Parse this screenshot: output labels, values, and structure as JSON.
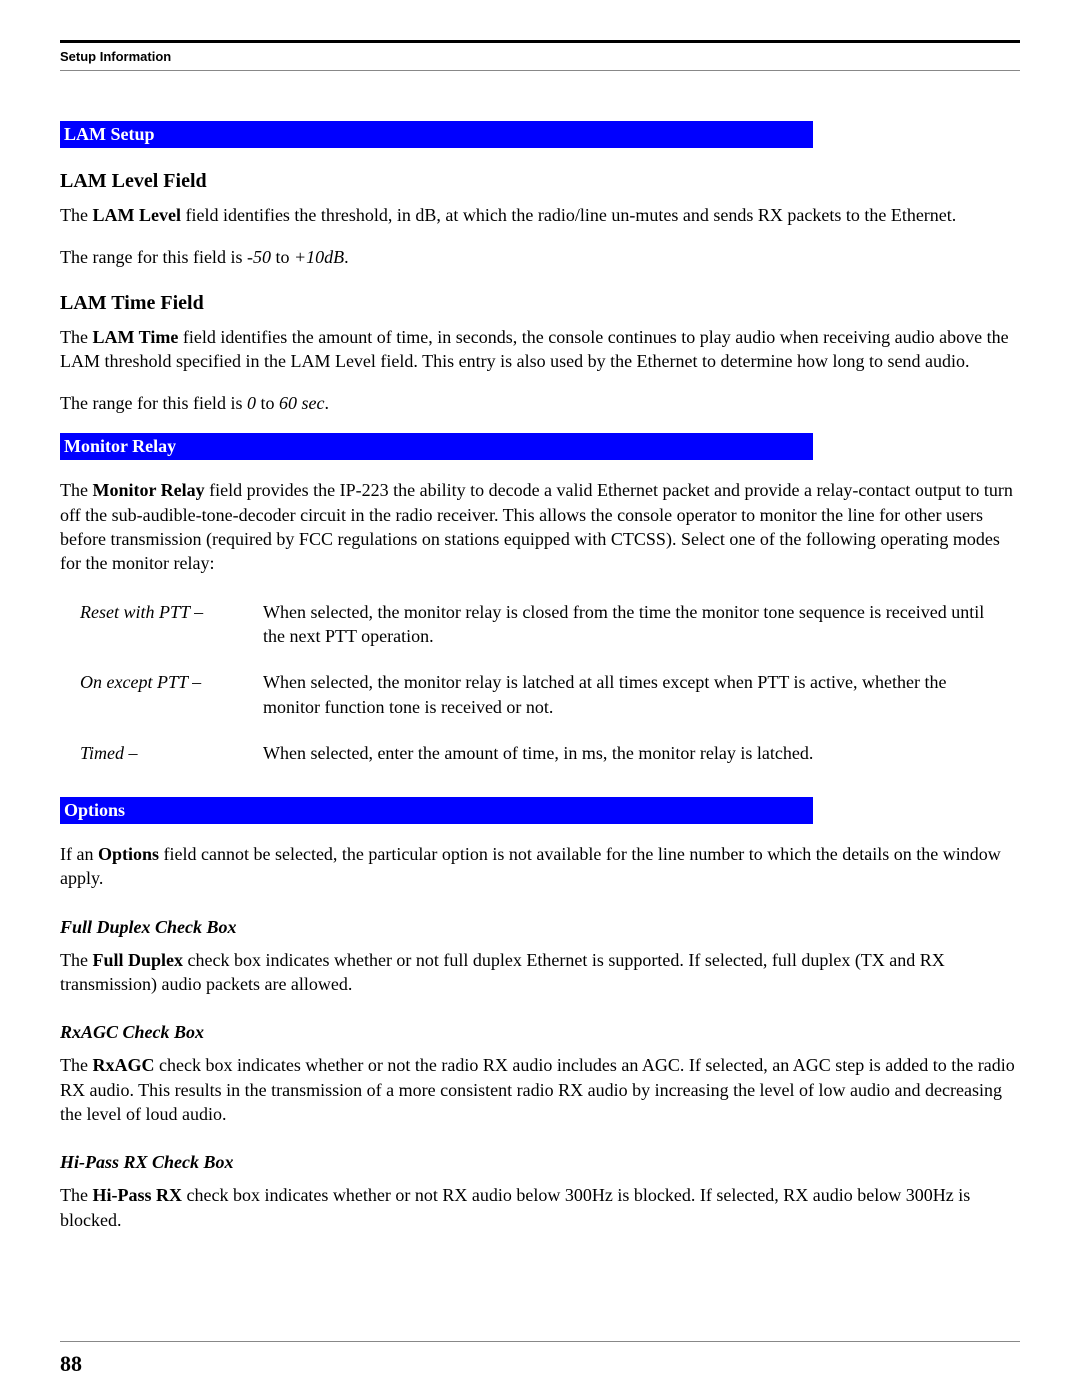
{
  "header": {
    "label": "Setup Information"
  },
  "lam_setup": {
    "bar": "LAM Setup",
    "level": {
      "heading": "LAM Level Field",
      "p1a": "The ",
      "p1b": "LAM Level",
      "p1c": " field identifies the threshold, in dB, at which the radio/line un-mutes and sends RX packets to the Ethernet.",
      "p2a": "The range for this field is ",
      "p2b": "-50",
      "p2c": " to ",
      "p2d": "+10dB",
      "p2e": "."
    },
    "time": {
      "heading": "LAM Time Field",
      "p1a": "The ",
      "p1b": "LAM Time",
      "p1c": " field identifies the amount of time, in seconds, the console continues to play audio when receiving audio above the LAM threshold specified in the LAM Level field. This entry is also used by the Ethernet to determine how long to send audio.",
      "p2a": "The range for this field is ",
      "p2b": "0",
      "p2c": " to ",
      "p2d": "60 sec",
      "p2e": "."
    }
  },
  "monitor_relay": {
    "bar": "Monitor Relay",
    "intro_a": "The ",
    "intro_b": "Monitor Relay",
    "intro_c": " field provides the IP-223 the ability to decode a valid Ethernet packet and provide a relay-contact output to turn off the sub-audible-tone-decoder circuit in the radio receiver. This allows the console operator to monitor the line for other users before transmission (required by FCC regulations on stations equipped with CTCSS). Select one of the following operating modes for the monitor relay:",
    "rows": [
      {
        "term": "Reset with PTT –",
        "desc": "When selected, the monitor relay is closed from the time the monitor tone sequence is received until the next PTT operation."
      },
      {
        "term": "On except PTT –",
        "desc": "When selected, the monitor relay is latched at all times except when PTT is active, whether the monitor function tone is received or not."
      },
      {
        "term": "Timed –",
        "desc": "When selected, enter the amount of time, in ms, the monitor relay is latched."
      }
    ]
  },
  "options": {
    "bar": "Options",
    "intro_a": "If an ",
    "intro_b": "Options",
    "intro_c": " field cannot be selected, the particular option is not available for the line number to which the details on the window apply.",
    "full_duplex": {
      "heading": "Full Duplex Check Box",
      "a": "The ",
      "b": "Full Duplex",
      "c": " check box indicates whether or not full duplex Ethernet is supported. If selected, full duplex (TX and RX transmission) audio packets are allowed."
    },
    "rxagc": {
      "heading": "RxAGC Check Box",
      "a": "The ",
      "b": "RxAGC",
      "c": " check box indicates whether or not the radio RX audio includes an AGC. If selected, an AGC step is added to the radio RX audio. This results in the transmission of a more consistent radio RX audio by increasing the level of low audio and decreasing the level of loud audio."
    },
    "hipass": {
      "heading": "Hi-Pass RX Check Box",
      "a": "The ",
      "b": "Hi-Pass RX",
      "c": " check box indicates whether or not RX audio below 300Hz is blocked. If selected, RX audio below 300Hz is blocked."
    }
  },
  "page_number": "88"
}
